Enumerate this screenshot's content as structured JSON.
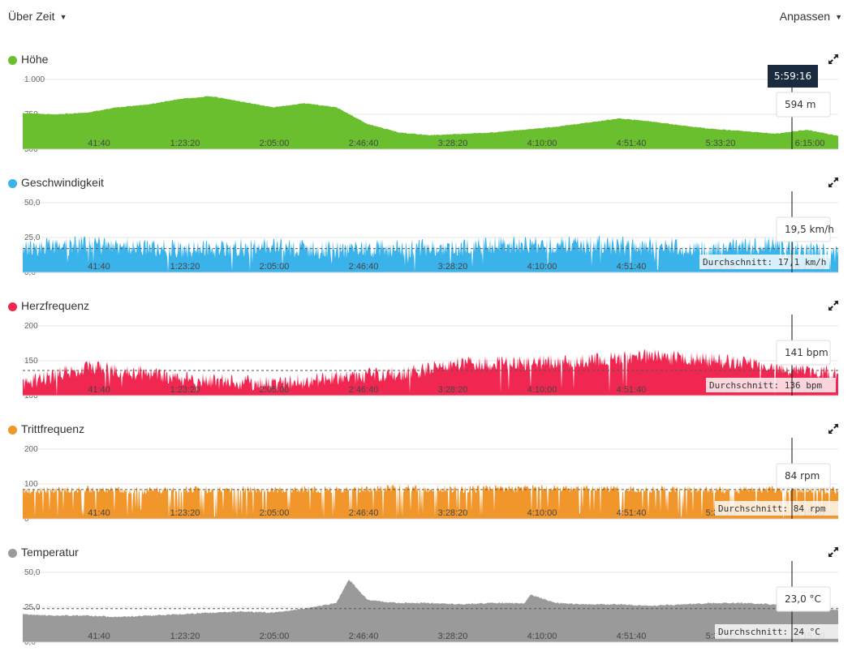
{
  "toolbar": {
    "view_label": "Über Zeit",
    "customize_label": "Anpassen"
  },
  "cursor": {
    "time": "5:59:16"
  },
  "chart_data": [
    {
      "type": "area",
      "title": "Höhe",
      "color": "#6abf2f",
      "ylim": [
        500,
        1000
      ],
      "yticks": [
        500,
        750,
        1000
      ],
      "ytick_labels": [
        "500",
        "750",
        "1.000"
      ],
      "x_tick_labels": [
        "41:40",
        "1:23:20",
        "2:05:00",
        "2:46:40",
        "3:28:20",
        "4:10:00",
        "4:51:40",
        "5:33:20",
        "6:15:00"
      ],
      "xlim": [
        0,
        6.5
      ],
      "grid": true,
      "x": [
        0,
        0.25,
        0.5,
        0.75,
        1,
        1.25,
        1.5,
        1.75,
        2,
        2.25,
        2.5,
        2.75,
        3,
        3.25,
        3.5,
        3.75,
        4,
        4.25,
        4.5,
        4.75,
        5,
        5.25,
        5.5,
        5.75,
        6,
        6.25,
        6.5
      ],
      "y": [
        760,
        750,
        760,
        800,
        820,
        860,
        880,
        840,
        800,
        830,
        800,
        680,
        620,
        600,
        610,
        620,
        640,
        660,
        690,
        720,
        700,
        670,
        645,
        630,
        610,
        640,
        595
      ],
      "tooltip": "594 m",
      "average": null,
      "average_label": ""
    },
    {
      "type": "area",
      "title": "Geschwindigkeit",
      "color": "#3ab3ea",
      "ylim": [
        0,
        50
      ],
      "yticks": [
        0,
        25,
        50
      ],
      "ytick_labels": [
        "0,0",
        "25,0",
        "50,0"
      ],
      "x_tick_labels": [
        "41:40",
        "1:23:20",
        "2:05:00",
        "2:46:40",
        "3:28:20",
        "4:10:00",
        "4:51:40",
        "5:33:20",
        "6:15:00"
      ],
      "xlim": [
        0,
        6.5
      ],
      "grid": true,
      "x": [
        0,
        0.5,
        1,
        1.5,
        2,
        2.5,
        3,
        3.5,
        4,
        4.5,
        5,
        5.5,
        6,
        6.5
      ],
      "y": [
        16,
        19,
        17,
        16,
        18,
        15,
        17,
        18,
        19,
        19,
        18,
        16,
        19,
        12
      ],
      "tooltip": "19,5 km/h",
      "average": 17.1,
      "average_label": "Durchschnitt: 17,1 km/h"
    },
    {
      "type": "area",
      "title": "Herzfrequenz",
      "color": "#f02851",
      "ylim": [
        100,
        200
      ],
      "yticks": [
        100,
        150,
        200
      ],
      "ytick_labels": [
        "100",
        "150",
        "200"
      ],
      "x_tick_labels": [
        "41:40",
        "1:23:20",
        "2:05:00",
        "2:46:40",
        "3:28:20",
        "4:10:00",
        "4:51:40",
        "5:33:20",
        "6:15:00"
      ],
      "xlim": [
        0,
        6.5
      ],
      "grid": true,
      "x": [
        0,
        0.5,
        1,
        1.5,
        2,
        2.5,
        3,
        3.5,
        4,
        4.5,
        5,
        5.5,
        6,
        6.5
      ],
      "y": [
        115,
        140,
        130,
        120,
        115,
        125,
        130,
        145,
        145,
        150,
        155,
        150,
        140,
        130
      ],
      "tooltip": "141 bpm",
      "average": 136,
      "average_label": "Durchschnitt: 136 bpm"
    },
    {
      "type": "area",
      "title": "Trittfrequenz",
      "color": "#f0962a",
      "ylim": [
        0,
        200
      ],
      "yticks": [
        0,
        100,
        200
      ],
      "ytick_labels": [
        "0",
        "100",
        "200"
      ],
      "x_tick_labels": [
        "41:40",
        "1:23:20",
        "2:05:00",
        "2:46:40",
        "3:28:20",
        "4:10:00",
        "4:51:40",
        "5:33:20",
        "6:15:00"
      ],
      "xlim": [
        0,
        6.5
      ],
      "grid": true,
      "x": [
        0,
        0.5,
        1,
        1.5,
        2,
        2.5,
        3,
        3.5,
        4,
        4.5,
        5,
        5.5,
        6,
        6.5
      ],
      "y": [
        80,
        85,
        80,
        85,
        82,
        85,
        88,
        85,
        86,
        87,
        85,
        84,
        84,
        82
      ],
      "tooltip": "84 rpm",
      "average": 84,
      "average_label": "Durchschnitt: 84 rpm"
    },
    {
      "type": "area",
      "title": "Temperatur",
      "color": "#9a9a9a",
      "ylim": [
        0,
        50
      ],
      "yticks": [
        0,
        25,
        50
      ],
      "ytick_labels": [
        "0,0",
        "25,0",
        "50,0"
      ],
      "x_tick_labels": [
        "41:40",
        "1:23:20",
        "2:05:00",
        "2:46:40",
        "3:28:20",
        "4:10:00",
        "4:51:40",
        "5:33:20",
        "6:15:00"
      ],
      "xlim": [
        0,
        6.5
      ],
      "grid": true,
      "x": [
        0,
        0.25,
        0.5,
        0.75,
        1,
        1.25,
        1.5,
        1.75,
        2,
        2.25,
        2.5,
        2.6,
        2.75,
        3,
        3.25,
        3.5,
        3.75,
        4,
        4.05,
        4.25,
        4.5,
        4.75,
        5,
        5.25,
        5.5,
        5.75,
        6,
        6.25,
        6.5
      ],
      "y": [
        20,
        19,
        19,
        18,
        19,
        20,
        21,
        22,
        21,
        24,
        28,
        45,
        30,
        28,
        28,
        27,
        28,
        28,
        34,
        28,
        27,
        27,
        26,
        27,
        28,
        28,
        27,
        24,
        23
      ],
      "tooltip": "23,0 °C",
      "average": 24,
      "average_label": "Durchschnitt: 24 °C"
    }
  ]
}
